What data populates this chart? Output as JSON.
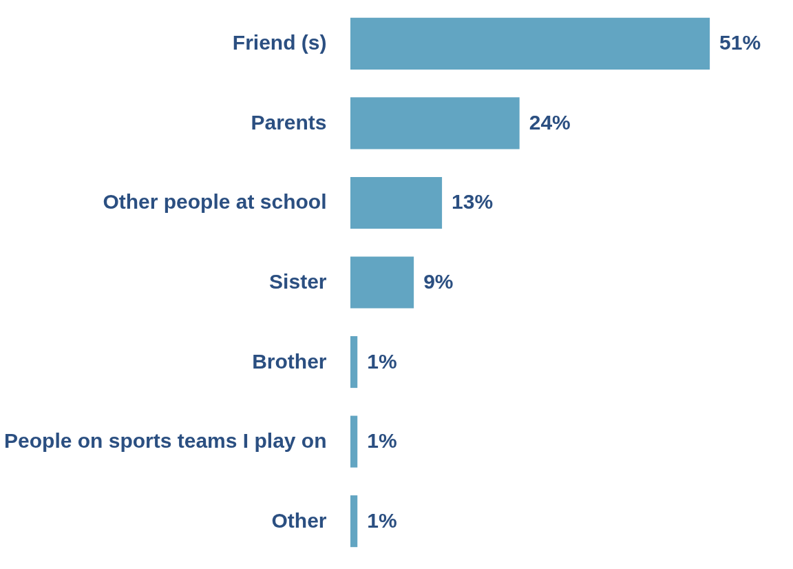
{
  "chart_data": {
    "type": "bar",
    "orientation": "horizontal",
    "categories": [
      "Friend (s)",
      "Parents",
      "Other people at school",
      "Sister",
      "Brother",
      "People on sports teams I play on",
      "Other"
    ],
    "values": [
      51,
      24,
      13,
      9,
      1,
      1,
      1
    ],
    "value_labels": [
      "51%",
      "24%",
      "13%",
      "9%",
      "1%",
      "1%",
      "1%"
    ],
    "color": "#62a5c2",
    "tick_labels": "y"
  }
}
